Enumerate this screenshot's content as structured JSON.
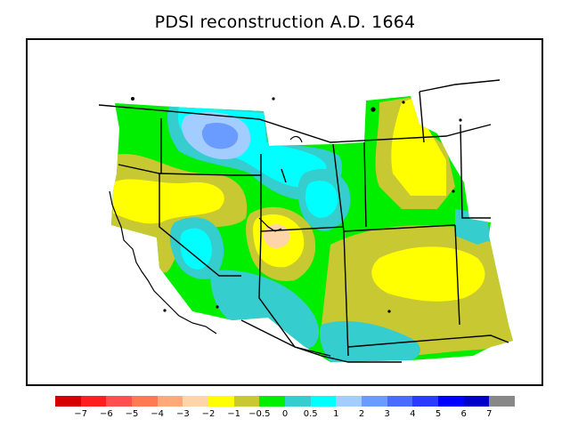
{
  "title": "PDSI reconstruction A.D. 1664",
  "legend": {
    "colors": [
      "#d60000",
      "#ff1e1e",
      "#ff4f4f",
      "#ff7a50",
      "#ffa878",
      "#ffd4a8",
      "#ffff00",
      "#c8c832",
      "#00ee00",
      "#35cdcd",
      "#00ffff",
      "#a3cdff",
      "#6a9bff",
      "#4a6bff",
      "#2a3bff",
      "#0000ff",
      "#0000c8",
      "#888888"
    ],
    "labels": [
      "−7",
      "−6",
      "−5",
      "−4",
      "−3",
      "−2",
      "−1",
      "−0.5",
      "0",
      "0.5",
      "1",
      "2",
      "3",
      "4",
      "5",
      "6",
      "7"
    ]
  },
  "fill_colors": {
    "very_wet": "#6a9bff",
    "wet": "#a3cdff",
    "moist": "#00ffff",
    "slightly_moist": "#35cdcd",
    "normal": "#00ee00",
    "slightly_dry": "#c8c832",
    "dry": "#ffff00",
    "very_dry": "#ffd4a8"
  }
}
